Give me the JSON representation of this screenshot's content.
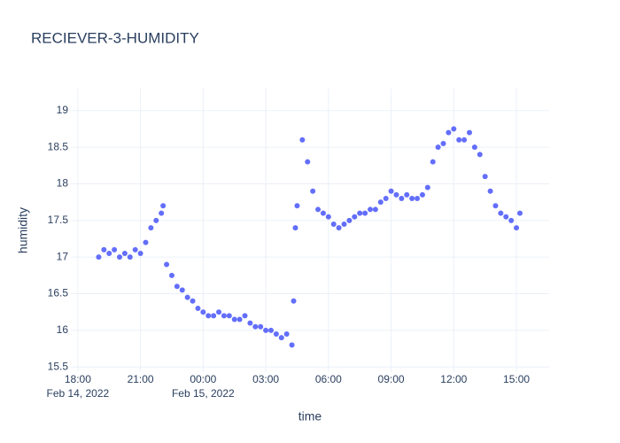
{
  "chart_data": {
    "type": "scatter",
    "title": "RECIEVER-3-HUMIDITY",
    "x_label": "time",
    "y_label": "humidity",
    "color": "#636efa",
    "grid": true,
    "xlim": [
      "2022-02-14 17:40",
      "2022-02-15 16:34"
    ],
    "ylim": [
      15.43,
      19.3
    ],
    "xticks": [
      {
        "value": "2022-02-14 18:00",
        "label": "18:00"
      },
      {
        "value": "2022-02-14 21:00",
        "label": "21:00"
      },
      {
        "value": "2022-02-15 00:00",
        "label": "00:00"
      },
      {
        "value": "2022-02-15 03:00",
        "label": "03:00"
      },
      {
        "value": "2022-02-15 06:00",
        "label": "06:00"
      },
      {
        "value": "2022-02-15 09:00",
        "label": "09:00"
      },
      {
        "value": "2022-02-15 12:00",
        "label": "12:00"
      },
      {
        "value": "2022-02-15 15:00",
        "label": "15:00"
      }
    ],
    "xtick_dates": [
      {
        "value": "2022-02-14 18:00",
        "label": "Feb 14, 2022"
      },
      {
        "value": "2022-02-15 00:00",
        "label": "Feb 15, 2022"
      }
    ],
    "yticks": [
      15.5,
      16,
      16.5,
      17,
      17.5,
      18,
      18.5,
      19
    ],
    "x": [
      "2022-02-14 19:00",
      "2022-02-14 19:15",
      "2022-02-14 19:30",
      "2022-02-14 19:45",
      "2022-02-14 20:00",
      "2022-02-14 20:15",
      "2022-02-14 20:30",
      "2022-02-14 20:45",
      "2022-02-14 21:00",
      "2022-02-14 21:15",
      "2022-02-14 21:30",
      "2022-02-14 21:45",
      "2022-02-14 22:00",
      "2022-02-14 22:05",
      "2022-02-14 22:15",
      "2022-02-14 22:30",
      "2022-02-14 22:45",
      "2022-02-14 23:00",
      "2022-02-14 23:15",
      "2022-02-14 23:30",
      "2022-02-14 23:45",
      "2022-02-15 00:00",
      "2022-02-15 00:15",
      "2022-02-15 00:30",
      "2022-02-15 00:45",
      "2022-02-15 01:00",
      "2022-02-15 01:15",
      "2022-02-15 01:30",
      "2022-02-15 01:45",
      "2022-02-15 02:00",
      "2022-02-15 02:15",
      "2022-02-15 02:30",
      "2022-02-15 02:45",
      "2022-02-15 03:00",
      "2022-02-15 03:15",
      "2022-02-15 03:30",
      "2022-02-15 03:45",
      "2022-02-15 04:00",
      "2022-02-15 04:15",
      "2022-02-15 04:20",
      "2022-02-15 04:25",
      "2022-02-15 04:30",
      "2022-02-15 04:45",
      "2022-02-15 05:00",
      "2022-02-15 05:15",
      "2022-02-15 05:30",
      "2022-02-15 05:45",
      "2022-02-15 06:00",
      "2022-02-15 06:15",
      "2022-02-15 06:30",
      "2022-02-15 06:45",
      "2022-02-15 07:00",
      "2022-02-15 07:15",
      "2022-02-15 07:30",
      "2022-02-15 07:45",
      "2022-02-15 08:00",
      "2022-02-15 08:15",
      "2022-02-15 08:30",
      "2022-02-15 08:45",
      "2022-02-15 09:00",
      "2022-02-15 09:15",
      "2022-02-15 09:30",
      "2022-02-15 09:45",
      "2022-02-15 10:00",
      "2022-02-15 10:15",
      "2022-02-15 10:30",
      "2022-02-15 10:45",
      "2022-02-15 11:00",
      "2022-02-15 11:15",
      "2022-02-15 11:30",
      "2022-02-15 11:45",
      "2022-02-15 12:00",
      "2022-02-15 12:15",
      "2022-02-15 12:30",
      "2022-02-15 12:45",
      "2022-02-15 13:00",
      "2022-02-15 13:15",
      "2022-02-15 13:30",
      "2022-02-15 13:45",
      "2022-02-15 14:00",
      "2022-02-15 14:15",
      "2022-02-15 14:30",
      "2022-02-15 14:45",
      "2022-02-15 15:00",
      "2022-02-15 15:10"
    ],
    "values": [
      17.0,
      17.1,
      17.05,
      17.1,
      17.0,
      17.05,
      17.0,
      17.1,
      17.05,
      17.2,
      17.4,
      17.5,
      17.6,
      17.7,
      16.9,
      16.75,
      16.6,
      16.55,
      16.45,
      16.4,
      16.3,
      16.25,
      16.2,
      16.2,
      16.25,
      16.2,
      16.2,
      16.15,
      16.15,
      16.2,
      16.1,
      16.05,
      16.05,
      16.0,
      16.0,
      15.95,
      15.9,
      15.95,
      15.8,
      16.4,
      17.4,
      17.7,
      18.6,
      18.3,
      17.9,
      17.65,
      17.6,
      17.55,
      17.45,
      17.4,
      17.45,
      17.5,
      17.55,
      17.6,
      17.6,
      17.65,
      17.65,
      17.75,
      17.8,
      17.9,
      17.85,
      17.8,
      17.85,
      17.8,
      17.8,
      17.85,
      17.95,
      18.3,
      18.5,
      18.55,
      18.7,
      18.75,
      18.6,
      18.6,
      18.7,
      18.5,
      18.4,
      18.1,
      17.9,
      17.7,
      17.6,
      17.55,
      17.5,
      17.4,
      17.6
    ]
  }
}
